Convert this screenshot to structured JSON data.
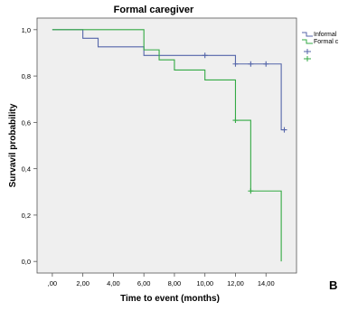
{
  "chart_data": {
    "type": "line",
    "title": "Formal caregiver",
    "xlabel": "Time to event (months)",
    "ylabel": "Survavil probability",
    "xlim": [
      -1,
      16
    ],
    "ylim": [
      -0.05,
      1.05
    ],
    "x_ticks": [
      0,
      2,
      4,
      6,
      8,
      10,
      12,
      14
    ],
    "x_tick_labels": [
      ",00",
      "2,00",
      "4,00",
      "6,00",
      "8,00",
      "10,00",
      "12,00",
      "14,00"
    ],
    "y_ticks": [
      0,
      0.2,
      0.4,
      0.6,
      0.8,
      1.0
    ],
    "y_tick_labels": [
      "0,0",
      "0,2",
      "0,4",
      "0,6",
      "0,8",
      "1,0"
    ],
    "grid": false,
    "legend_position": "right",
    "series": [
      {
        "name": "Informal",
        "color": "#5566aa",
        "steps": [
          [
            0,
            1.0
          ],
          [
            2,
            0.963
          ],
          [
            3,
            0.926
          ],
          [
            6,
            0.889
          ],
          [
            12,
            0.852
          ],
          [
            15,
            0.568
          ]
        ],
        "end_x": 15.2,
        "censored": [
          [
            10,
            0.889
          ],
          [
            12,
            0.852
          ],
          [
            13,
            0.852
          ],
          [
            14,
            0.852
          ],
          [
            15.2,
            0.568
          ]
        ]
      },
      {
        "name": "Formal c",
        "color": "#33aa44",
        "steps": [
          [
            0,
            1.0
          ],
          [
            6,
            0.913
          ],
          [
            7,
            0.87
          ],
          [
            8,
            0.826
          ],
          [
            10,
            0.783
          ],
          [
            12,
            0.609
          ],
          [
            13,
            0.304
          ],
          [
            15,
            0.0
          ]
        ],
        "end_x": 15,
        "censored": [
          [
            12,
            0.609
          ],
          [
            13,
            0.304
          ]
        ]
      }
    ],
    "panel_label": "B"
  }
}
